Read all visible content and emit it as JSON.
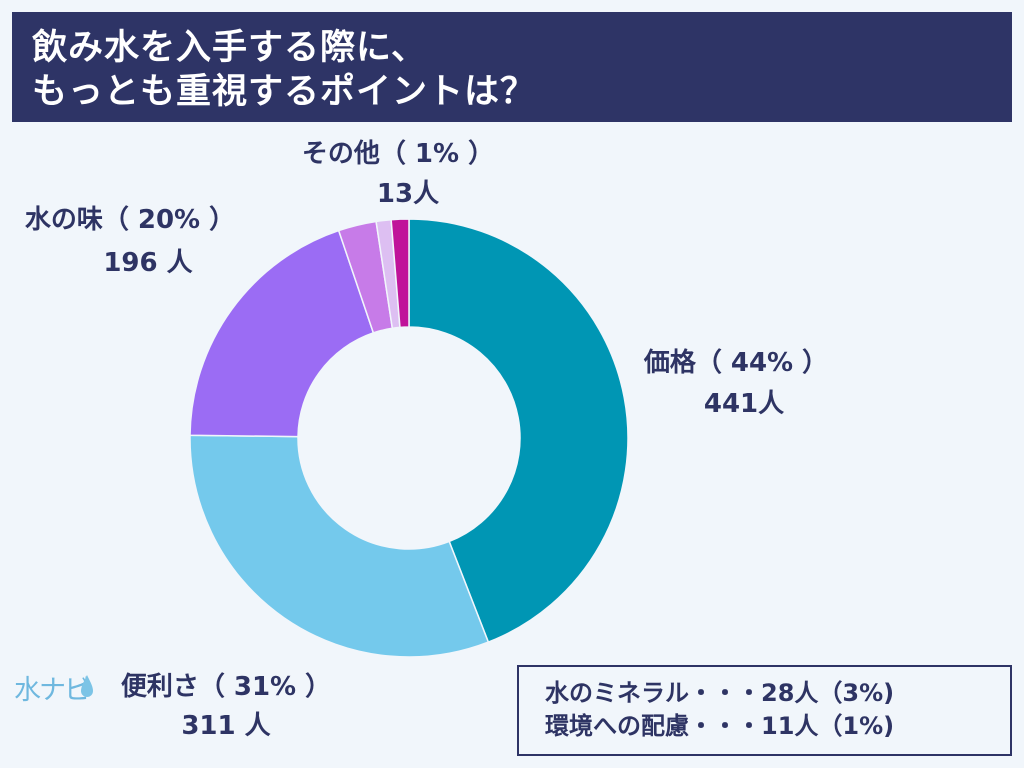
{
  "header": {
    "line1": "飲み水を入手する際に、",
    "line2": "もっとも重視するポイントは？"
  },
  "chart_data": {
    "type": "pie",
    "variant": "donut",
    "title": "飲み水を入手する際に、もっとも重視するポイントは？",
    "slices": [
      {
        "label": "価格",
        "percent_label": "（ 44% ）",
        "count_label": "441人",
        "value": 441,
        "color": "#0096b4"
      },
      {
        "label": "便利さ",
        "percent_label": "（ 31% ）",
        "count_label": "311 人",
        "value": 311,
        "color": "#74c9ec"
      },
      {
        "label": "水の味",
        "percent_label": "（ 20% ）",
        "count_label": "196 人",
        "value": 196,
        "color": "#9b6cf4"
      },
      {
        "label": "水のミネラル",
        "value": 28,
        "color": "#c77be8"
      },
      {
        "label": "環境への配慮",
        "value": 11,
        "color": "#ddbff2"
      },
      {
        "label": "その他",
        "percent_label": "（ 1% ）",
        "count_label": "13人",
        "value": 13,
        "color": "#c0139a"
      }
    ],
    "labels": [
      {
        "text": "価格（ 44% ）",
        "sub": "441人"
      },
      {
        "text": "便利さ（ 31% ）",
        "sub": "311 人"
      },
      {
        "text": "水の味（ 20% ）",
        "sub": "196 人"
      },
      {
        "text": "その他（ 1% ）",
        "sub": "13人"
      }
    ]
  },
  "notes": {
    "line1": "水のミネラル・・・28人（3%)",
    "line2": "環境への配慮・・・11人（1%)"
  },
  "logo": {
    "text": "水ナビ",
    "icon": "water-drop-icon"
  }
}
